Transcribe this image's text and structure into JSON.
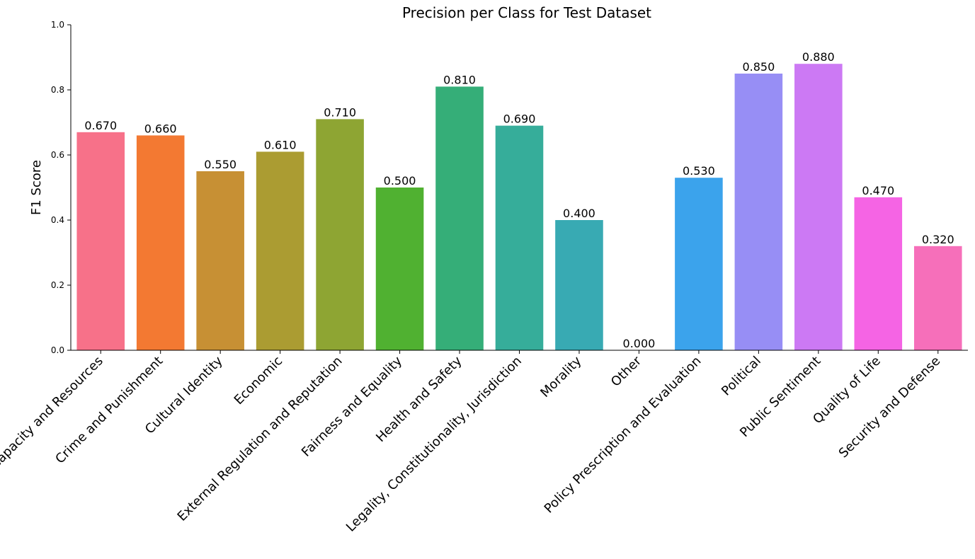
{
  "chart_data": {
    "type": "bar",
    "title": "Precision per Class for Test Dataset",
    "xlabel": "",
    "ylabel": "F1 Score",
    "ylim": [
      0,
      1.0
    ],
    "yticks": [
      "0.0",
      "0.2",
      "0.4",
      "0.6",
      "0.8",
      "1.0"
    ],
    "categories": [
      "Capacity and Resources",
      "Crime and Punishment",
      "Cultural Identity",
      "Economic",
      "External Regulation and Reputation",
      "Fairness and Equality",
      "Health and Safety",
      "Legality, Constitutionality, Jurisdiction",
      "Morality",
      "Other",
      "Policy Prescription and Evaluation",
      "Political",
      "Public Sentiment",
      "Quality of Life",
      "Security and Defense"
    ],
    "values": [
      0.67,
      0.66,
      0.55,
      0.61,
      0.71,
      0.5,
      0.81,
      0.69,
      0.4,
      0.0,
      0.53,
      0.85,
      0.88,
      0.47,
      0.32
    ],
    "value_labels": [
      "0.670",
      "0.660",
      "0.550",
      "0.610",
      "0.710",
      "0.500",
      "0.810",
      "0.690",
      "0.400",
      "0.000",
      "0.530",
      "0.850",
      "0.880",
      "0.470",
      "0.320"
    ],
    "colors": [
      "#f77189",
      "#f37932",
      "#c79034",
      "#ab9c32",
      "#8ea533",
      "#50b131",
      "#35ae78",
      "#36ad9a",
      "#38aab3",
      "#3aa5c8",
      "#3ba3ec",
      "#978ef5",
      "#cc79f4",
      "#f564e4",
      "#f66fba"
    ],
    "grid": false,
    "legend": "none"
  }
}
